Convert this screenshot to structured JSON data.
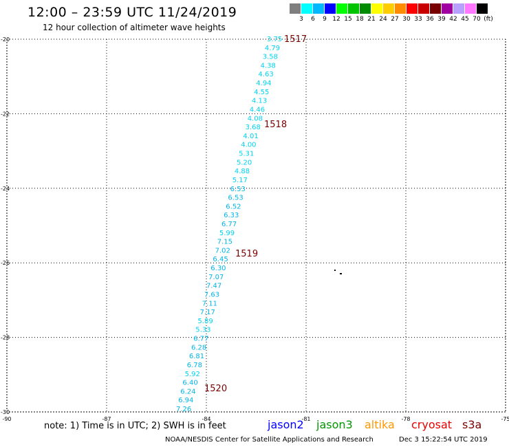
{
  "header": {
    "title": "12:00 – 23:59 UTC 11/24/2019",
    "subtitle": "12 hour collection of altimeter wave heights"
  },
  "color_scale": {
    "unit": "(ft)",
    "colors": [
      "#7f7f7f",
      "#00ffff",
      "#00b8ff",
      "#0000ff",
      "#00ff00",
      "#00c400",
      "#008c00",
      "#ffff00",
      "#ffcc00",
      "#ff8c00",
      "#ff0000",
      "#c80000",
      "#780000",
      "#a000a0",
      "#b8a0ff",
      "#ff78ff",
      "#000000"
    ],
    "labels": [
      "3",
      "6",
      "9",
      "12",
      "15",
      "18",
      "21",
      "24",
      "27",
      "30",
      "33",
      "36",
      "39",
      "42",
      "45",
      "70"
    ]
  },
  "map": {
    "lon_range": [
      -90,
      -75
    ],
    "lat_range": [
      -30,
      -20
    ],
    "lon_ticks": [
      "-90",
      "-87",
      "-84",
      "-81",
      "-78",
      "-75"
    ],
    "lat_ticks": [
      "-20",
      "-22",
      "-24",
      "-26",
      "-28",
      "-30"
    ],
    "wave_heights": [
      "3.75",
      "4.79",
      "3.58",
      "4.38",
      "4.63",
      "4.94",
      "4.55",
      "4.13",
      "4.46",
      "4.08",
      "3.68",
      "4.01",
      "4.00",
      "5.31",
      "5.20",
      "4.88",
      "5.17",
      "6.53",
      "6.53",
      "6.52",
      "6.33",
      "6.77",
      "5.99",
      "7.15",
      "7.02",
      "6.45",
      "6.30",
      "7.07",
      "7.47",
      "7.63",
      "7.11",
      "7.17",
      "5.89",
      "5.33",
      "6.77",
      "6.28",
      "6.81",
      "6.78",
      "5.92",
      "6.40",
      "6.24",
      "6.94",
      "7.26"
    ],
    "pass_labels": [
      "1517",
      "1518",
      "1519",
      "1520"
    ]
  },
  "footer": {
    "note": "note: 1) Time is in UTC; 2) SWH is in feet",
    "satellites": [
      {
        "name": "jason2",
        "color": "#0000ff"
      },
      {
        "name": "jason3",
        "color": "#009600"
      },
      {
        "name": "altika",
        "color": "#ff9600"
      },
      {
        "name": "cryosat",
        "color": "#e60000"
      },
      {
        "name": "s3a",
        "color": "#800000"
      }
    ],
    "credit": "NOAA/NESDIS Center for Satellite Applications and Research",
    "timestamp": "Dec  3 15:22:54 UTC 2019"
  }
}
